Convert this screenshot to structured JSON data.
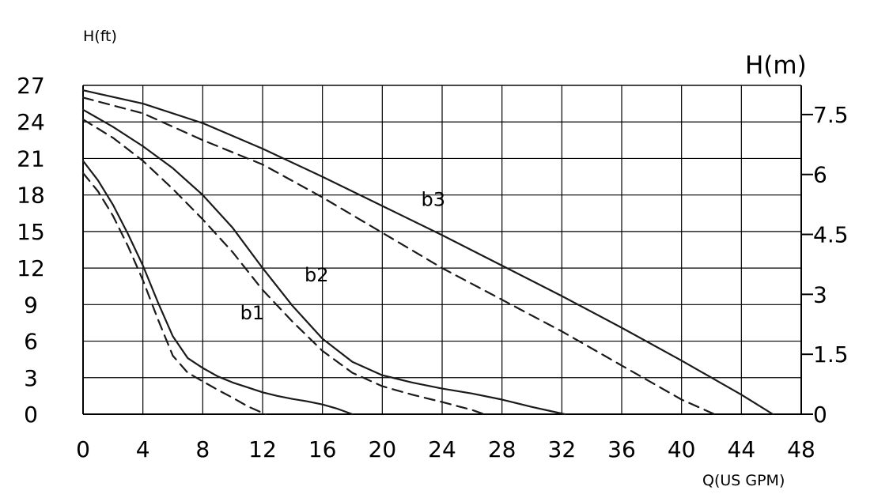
{
  "chart_data": {
    "type": "line",
    "y_left_label": "H(ft)",
    "y_right_label": "H(m)",
    "x_label": "Q(US GPM)",
    "xlim": [
      0,
      48
    ],
    "ylim_left": [
      0,
      27
    ],
    "ylim_right": [
      0,
      8.23
    ],
    "x_ticks": [
      0,
      4,
      8,
      12,
      16,
      20,
      24,
      28,
      32,
      36,
      40,
      44,
      48
    ],
    "x_tick_labels": [
      "0",
      "4",
      "8",
      "12",
      "16",
      "20",
      "24",
      "28",
      "32",
      "36",
      "40",
      "44",
      "48"
    ],
    "y_left_ticks": [
      0,
      3,
      6,
      9,
      12,
      15,
      18,
      21,
      24,
      27
    ],
    "y_left_tick_labels": [
      "0",
      "3",
      "6",
      "9",
      "12",
      "15",
      "18",
      "21",
      "24",
      "27"
    ],
    "y_right_ticks": [
      0,
      1.5,
      3,
      4.5,
      6,
      7.5
    ],
    "y_right_tick_labels": [
      "0",
      "1.5",
      "3",
      "4.5",
      "6",
      "7.5"
    ],
    "grid": true,
    "curve_labels": [
      {
        "text": "b1",
        "x": 10.5,
        "y": 7.8
      },
      {
        "text": "b2",
        "x": 14.8,
        "y": 10.9
      },
      {
        "text": "b3",
        "x": 22.6,
        "y": 17.1
      }
    ],
    "series": [
      {
        "key": "b1-solid",
        "style": "solid",
        "x": [
          0,
          1,
          2,
          3,
          4,
          5,
          6,
          7,
          8,
          9,
          10,
          11,
          12,
          13,
          14,
          15,
          16,
          17,
          18
        ],
        "y": [
          20.8,
          19.2,
          17.2,
          14.8,
          12.2,
          9.2,
          6.4,
          4.6,
          3.8,
          3.1,
          2.6,
          2.2,
          1.8,
          1.5,
          1.25,
          1.05,
          0.8,
          0.45,
          0
        ]
      },
      {
        "key": "b1-dashed",
        "style": "dashed",
        "x": [
          0,
          1,
          2,
          3,
          4,
          5,
          6,
          7,
          8,
          9,
          10,
          11,
          12.2
        ],
        "y": [
          19.8,
          18.3,
          16.3,
          13.8,
          11.0,
          7.8,
          4.8,
          3.4,
          2.7,
          2.0,
          1.35,
          0.65,
          0
        ]
      },
      {
        "key": "b2-solid",
        "style": "solid",
        "x": [
          0,
          2,
          4,
          6,
          8,
          10,
          12,
          14,
          16,
          18,
          20,
          22,
          24,
          26,
          28,
          30,
          32.2
        ],
        "y": [
          25.0,
          23.6,
          22.0,
          20.2,
          18.0,
          15.3,
          12.0,
          8.9,
          6.2,
          4.3,
          3.2,
          2.6,
          2.1,
          1.7,
          1.2,
          0.6,
          0
        ]
      },
      {
        "key": "b2-dashed",
        "style": "dashed",
        "x": [
          0,
          2,
          4,
          6,
          8,
          10,
          12,
          14,
          16,
          18,
          20,
          22,
          24,
          26,
          26.8
        ],
        "y": [
          24.2,
          22.7,
          20.8,
          18.5,
          16.0,
          13.3,
          10.2,
          7.6,
          5.2,
          3.4,
          2.3,
          1.6,
          1.0,
          0.35,
          0
        ]
      },
      {
        "key": "b3-solid",
        "style": "solid",
        "x": [
          0,
          4,
          8,
          12,
          16,
          20,
          24,
          28,
          32,
          36,
          40,
          44,
          46.1
        ],
        "y": [
          26.6,
          25.5,
          23.9,
          21.8,
          19.5,
          17.1,
          14.7,
          12.2,
          9.7,
          7.1,
          4.4,
          1.6,
          0
        ]
      },
      {
        "key": "b3-dashed",
        "style": "dashed",
        "x": [
          0,
          4,
          8,
          12,
          16,
          20,
          24,
          28,
          32,
          36,
          40,
          42.2
        ],
        "y": [
          26.0,
          24.7,
          22.5,
          20.5,
          17.8,
          14.9,
          12.0,
          9.4,
          6.8,
          4.0,
          1.2,
          0
        ]
      }
    ]
  }
}
